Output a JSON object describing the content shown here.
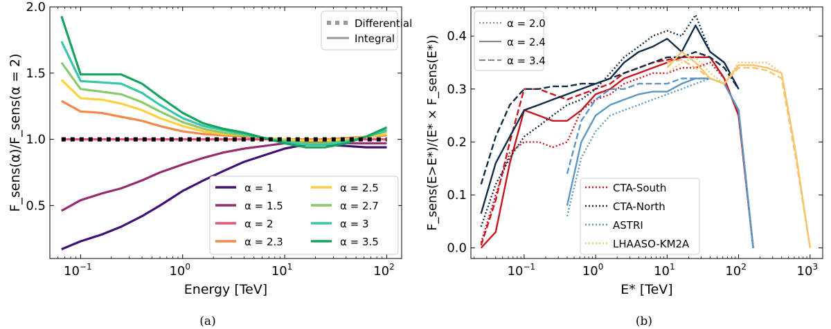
{
  "chart_data": [
    {
      "panel": "a",
      "caption": "(a)",
      "type": "line",
      "xscale": "log",
      "xlim": [
        0.05,
        140
      ],
      "ylim": [
        0.1,
        2.0
      ],
      "xlabel": "Energy [TeV]",
      "ylabel": "F_sens(α)/F_sens(α = 2)",
      "xticks": [
        {
          "v": 0.1,
          "base": "10",
          "exp": "−1"
        },
        {
          "v": 1,
          "base": "10",
          "exp": "0"
        },
        {
          "v": 10,
          "base": "10",
          "exp": "1"
        },
        {
          "v": 100,
          "base": "10",
          "exp": "2"
        }
      ],
      "yticks": [
        {
          "v": 0.5,
          "t": "0.5"
        },
        {
          "v": 1.0,
          "t": "1.0"
        },
        {
          "v": 1.5,
          "t": "1.5"
        },
        {
          "v": 2.0,
          "t": "2.0"
        }
      ],
      "style_legend": [
        {
          "label": "Differential",
          "dash": "dotted"
        },
        {
          "label": "Integral",
          "dash": "solid"
        }
      ],
      "legend_position": "lower-right",
      "x": [
        0.065,
        0.1,
        0.16,
        0.25,
        0.4,
        0.6,
        1.0,
        1.6,
        2.5,
        4.0,
        6.3,
        10,
        16,
        25,
        40,
        63,
        100
      ],
      "series": [
        {
          "name": "α = 1",
          "color": "#3f0f72",
          "values": [
            0.17,
            0.23,
            0.28,
            0.34,
            0.42,
            0.5,
            0.61,
            0.69,
            0.76,
            0.83,
            0.88,
            0.93,
            0.96,
            0.96,
            0.95,
            0.94,
            0.94
          ]
        },
        {
          "name": "α = 1.5",
          "color": "#962c6e",
          "values": [
            0.46,
            0.54,
            0.59,
            0.63,
            0.69,
            0.75,
            0.81,
            0.86,
            0.9,
            0.93,
            0.95,
            0.97,
            0.98,
            0.98,
            0.97,
            0.97,
            0.97
          ]
        },
        {
          "name": "α = 2",
          "color": "#e75077",
          "values": [
            1.0,
            1.0,
            1.0,
            1.0,
            1.0,
            1.0,
            1.0,
            1.0,
            1.0,
            1.0,
            1.0,
            1.0,
            1.0,
            1.0,
            1.0,
            1.0,
            1.0
          ]
        },
        {
          "name": "α = 2.3",
          "color": "#f5874b",
          "values": [
            1.29,
            1.21,
            1.2,
            1.17,
            1.14,
            1.1,
            1.06,
            1.04,
            1.03,
            1.02,
            1.01,
            1.0,
            1.0,
            1.0,
            1.01,
            1.02,
            1.03
          ]
        },
        {
          "name": "α = 2.5",
          "color": "#fcd13c",
          "values": [
            1.45,
            1.31,
            1.3,
            1.27,
            1.22,
            1.16,
            1.1,
            1.06,
            1.04,
            1.03,
            1.01,
            1.0,
            0.99,
            0.99,
            1.0,
            1.02,
            1.04
          ]
        },
        {
          "name": "α = 2.7",
          "color": "#8cc86c",
          "values": [
            1.58,
            1.38,
            1.36,
            1.34,
            1.28,
            1.21,
            1.13,
            1.08,
            1.05,
            1.03,
            1.01,
            0.99,
            0.97,
            0.97,
            0.99,
            1.02,
            1.06
          ]
        },
        {
          "name": "α = 3",
          "color": "#38c8a8",
          "values": [
            1.74,
            1.44,
            1.43,
            1.42,
            1.35,
            1.26,
            1.16,
            1.1,
            1.07,
            1.04,
            1.01,
            0.98,
            0.96,
            0.96,
            0.98,
            1.02,
            1.07
          ]
        },
        {
          "name": "α = 3.5",
          "color": "#16a35e",
          "values": [
            1.93,
            1.49,
            1.49,
            1.49,
            1.42,
            1.32,
            1.2,
            1.12,
            1.08,
            1.05,
            1.01,
            0.97,
            0.94,
            0.94,
            0.97,
            1.02,
            1.09
          ]
        }
      ],
      "differential_reference": {
        "label": "Differential",
        "color": "#000000",
        "values": [
          1.0,
          1.0,
          1.0,
          1.0,
          1.0,
          1.0,
          1.0,
          1.0,
          1.0,
          1.0,
          1.0,
          1.0,
          1.0,
          1.0,
          1.0,
          1.0,
          1.0
        ]
      }
    },
    {
      "panel": "b",
      "caption": "(b)",
      "type": "line",
      "xscale": "log",
      "xlim": [
        0.018,
        1500
      ],
      "ylim": [
        -0.02,
        0.455
      ],
      "xlabel": "E* [TeV]",
      "ylabel": "F_sens(E>E*)/(E* × F_sens(E*))",
      "xticks": [
        {
          "v": 0.1,
          "base": "10",
          "exp": "−1"
        },
        {
          "v": 1,
          "base": "10",
          "exp": "0"
        },
        {
          "v": 10,
          "base": "10",
          "exp": "1"
        },
        {
          "v": 100,
          "base": "10",
          "exp": "2"
        },
        {
          "v": 1000,
          "base": "10",
          "exp": "3"
        }
      ],
      "yticks": [
        {
          "v": 0.0,
          "t": "0.0"
        },
        {
          "v": 0.1,
          "t": "0.1"
        },
        {
          "v": 0.2,
          "t": "0.2"
        },
        {
          "v": 0.3,
          "t": "0.3"
        },
        {
          "v": 0.4,
          "t": "0.4"
        }
      ],
      "style_legend": [
        {
          "label": "α = 2.0",
          "dash": "dotted"
        },
        {
          "label": "α = 2.4",
          "dash": "solid"
        },
        {
          "label": "α = 3.4",
          "dash": "dashed"
        }
      ],
      "instrument_legend": [
        {
          "label": "CTA-South",
          "color": "#c8141e"
        },
        {
          "label": "CTA-North",
          "color": "#0e2a47"
        },
        {
          "label": "ASTRI",
          "color": "#5b96c2"
        },
        {
          "label": "LHAASO-KM2A",
          "color": "#f4c46e"
        }
      ],
      "legend_position": "upper-left and lower-right",
      "series": [
        {
          "instrument": "CTA-South",
          "alpha": "2.0",
          "dash": "dotted",
          "color": "#c8141e",
          "x": [
            0.025,
            0.04,
            0.063,
            0.1,
            0.16,
            0.25,
            0.4,
            0.63,
            1.0,
            1.6,
            2.5,
            4.0,
            6.3,
            10,
            16,
            25,
            40,
            63,
            100,
            160
          ],
          "values": [
            0.01,
            0.1,
            0.18,
            0.2,
            0.2,
            0.19,
            0.2,
            0.26,
            0.28,
            0.29,
            0.31,
            0.32,
            0.33,
            0.33,
            0.34,
            0.34,
            0.35,
            0.32,
            0.25,
            0.0
          ]
        },
        {
          "instrument": "CTA-South",
          "alpha": "2.4",
          "dash": "solid",
          "color": "#c8141e",
          "x": [
            0.025,
            0.04,
            0.063,
            0.1,
            0.16,
            0.25,
            0.4,
            0.63,
            1.0,
            1.6,
            2.5,
            4.0,
            6.3,
            10,
            16,
            25,
            40,
            63,
            100,
            160
          ],
          "values": [
            0.0,
            0.03,
            0.16,
            0.26,
            0.25,
            0.24,
            0.24,
            0.26,
            0.29,
            0.3,
            0.32,
            0.33,
            0.34,
            0.35,
            0.36,
            0.36,
            0.36,
            0.32,
            0.25,
            0.0
          ]
        },
        {
          "instrument": "CTA-South",
          "alpha": "3.4",
          "dash": "dashed",
          "color": "#c8141e",
          "x": [
            0.025,
            0.04,
            0.063,
            0.1,
            0.16,
            0.25,
            0.4,
            0.63,
            1.0,
            1.6,
            2.5,
            4.0,
            6.3,
            10,
            16,
            25,
            40,
            63,
            100,
            160
          ],
          "values": [
            0.005,
            0.09,
            0.2,
            0.3,
            0.3,
            0.29,
            0.28,
            0.29,
            0.3,
            0.31,
            0.33,
            0.34,
            0.35,
            0.355,
            0.36,
            0.36,
            0.36,
            0.32,
            0.25,
            0.0
          ]
        },
        {
          "instrument": "CTA-North",
          "alpha": "2.0",
          "dash": "dotted",
          "color": "#0e2a47",
          "x": [
            0.025,
            0.04,
            0.063,
            0.1,
            0.16,
            0.25,
            0.4,
            0.63,
            1.0,
            1.6,
            2.5,
            4.0,
            6.3,
            10,
            16,
            25,
            40,
            63,
            100
          ],
          "values": [
            0.04,
            0.12,
            0.17,
            0.21,
            0.23,
            0.25,
            0.27,
            0.28,
            0.3,
            0.33,
            0.36,
            0.38,
            0.4,
            0.41,
            0.4,
            0.44,
            0.37,
            0.35,
            0.3
          ]
        },
        {
          "instrument": "CTA-North",
          "alpha": "2.4",
          "dash": "solid",
          "color": "#0e2a47",
          "x": [
            0.025,
            0.04,
            0.063,
            0.1,
            0.16,
            0.25,
            0.4,
            0.63,
            1.0,
            1.6,
            2.5,
            4.0,
            6.3,
            10,
            16,
            25,
            40,
            63,
            100
          ],
          "values": [
            0.065,
            0.16,
            0.21,
            0.26,
            0.27,
            0.28,
            0.29,
            0.3,
            0.31,
            0.32,
            0.35,
            0.37,
            0.38,
            0.395,
            0.37,
            0.42,
            0.37,
            0.35,
            0.3
          ]
        },
        {
          "instrument": "CTA-North",
          "alpha": "3.4",
          "dash": "dashed",
          "color": "#0e2a47",
          "x": [
            0.025,
            0.04,
            0.063,
            0.1,
            0.16,
            0.25,
            0.4,
            0.63,
            1.0,
            1.6,
            2.5,
            4.0,
            6.3,
            10,
            16,
            25,
            40,
            63,
            100
          ],
          "values": [
            0.12,
            0.21,
            0.27,
            0.3,
            0.3,
            0.305,
            0.305,
            0.31,
            0.31,
            0.32,
            0.33,
            0.34,
            0.35,
            0.36,
            0.36,
            0.37,
            0.36,
            0.34,
            0.3
          ]
        },
        {
          "instrument": "ASTRI",
          "alpha": "2.0",
          "dash": "dotted",
          "color": "#5b96c2",
          "x": [
            0.4,
            0.63,
            1.0,
            1.6,
            2.5,
            4.0,
            6.3,
            10,
            16,
            25,
            40,
            63,
            100,
            160
          ],
          "values": [
            0.06,
            0.17,
            0.22,
            0.25,
            0.26,
            0.27,
            0.28,
            0.29,
            0.3,
            0.31,
            0.32,
            0.31,
            0.26,
            0.0
          ]
        },
        {
          "instrument": "ASTRI",
          "alpha": "2.4",
          "dash": "solid",
          "color": "#5b96c2",
          "x": [
            0.4,
            0.63,
            1.0,
            1.6,
            2.5,
            4.0,
            6.3,
            10,
            16,
            25,
            40,
            63,
            100,
            160
          ],
          "values": [
            0.08,
            0.2,
            0.25,
            0.27,
            0.28,
            0.29,
            0.295,
            0.295,
            0.31,
            0.32,
            0.32,
            0.31,
            0.26,
            0.0
          ]
        },
        {
          "instrument": "ASTRI",
          "alpha": "3.4",
          "dash": "dashed",
          "color": "#5b96c2",
          "x": [
            0.4,
            0.63,
            1.0,
            1.6,
            2.5,
            4.0,
            6.3,
            10,
            16,
            25,
            40,
            63,
            100,
            160
          ],
          "values": [
            0.14,
            0.24,
            0.28,
            0.3,
            0.3,
            0.31,
            0.31,
            0.31,
            0.32,
            0.32,
            0.32,
            0.31,
            0.26,
            0.0
          ]
        },
        {
          "instrument": "LHAASO-KM2A",
          "alpha": "2.0",
          "dash": "dotted",
          "color": "#f4c46e",
          "x": [
            10,
            16,
            25,
            40,
            63,
            100,
            160,
            250,
            400,
            630,
            1000
          ],
          "values": [
            0.33,
            0.35,
            0.36,
            0.33,
            0.31,
            0.35,
            0.35,
            0.35,
            0.33,
            0.18,
            0.0
          ]
        },
        {
          "instrument": "LHAASO-KM2A",
          "alpha": "2.4",
          "dash": "solid",
          "color": "#f4c46e",
          "x": [
            10,
            16,
            25,
            40,
            63,
            100,
            160,
            250,
            400,
            630,
            1000
          ],
          "values": [
            0.34,
            0.37,
            0.35,
            0.32,
            0.31,
            0.345,
            0.345,
            0.34,
            0.33,
            0.18,
            0.0
          ]
        },
        {
          "instrument": "LHAASO-KM2A",
          "alpha": "3.4",
          "dash": "dashed",
          "color": "#f4c46e",
          "x": [
            10,
            16,
            25,
            40,
            63,
            100,
            160,
            250,
            400,
            630,
            1000
          ],
          "values": [
            0.35,
            0.355,
            0.34,
            0.32,
            0.31,
            0.34,
            0.34,
            0.335,
            0.32,
            0.17,
            0.0
          ]
        }
      ]
    }
  ]
}
